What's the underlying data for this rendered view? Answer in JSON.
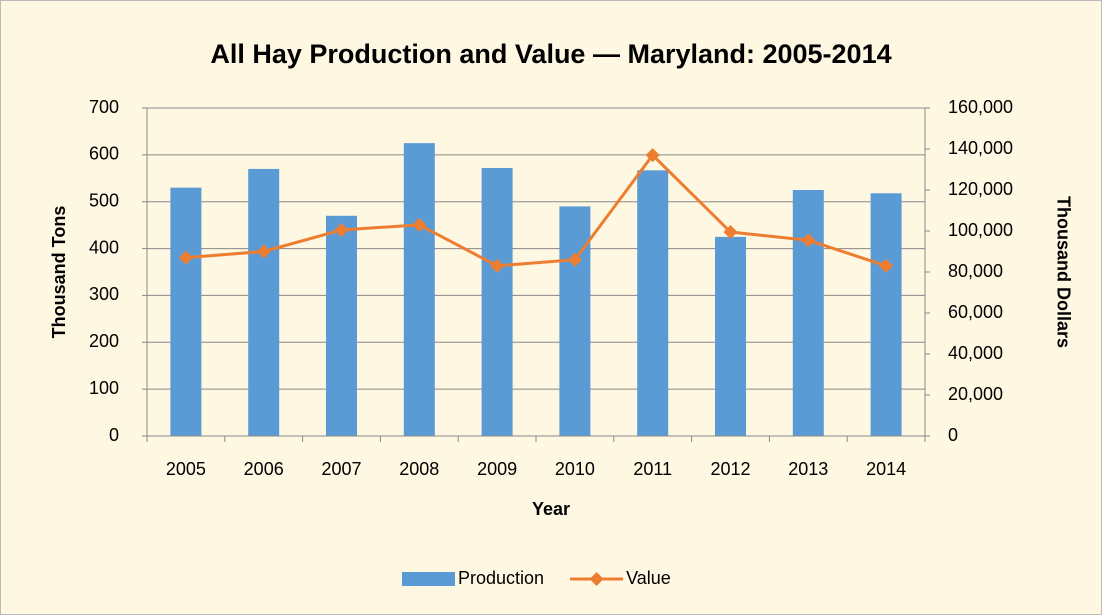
{
  "chart_data": {
    "type": "bar",
    "title": "All Hay Production and Value — Maryland: 2005-2014",
    "x_label": "Year",
    "y_label": "Thousand Tons",
    "y2_label": "Thousand Dollars",
    "categories": [
      "2005",
      "2006",
      "2007",
      "2008",
      "2009",
      "2010",
      "2011",
      "2012",
      "2013",
      "2014"
    ],
    "series": [
      {
        "name": "Production",
        "type": "bar",
        "color": "#5b9bd5",
        "values": [
          530,
          570,
          470,
          625,
          572,
          490,
          567,
          425,
          525,
          518
        ]
      },
      {
        "name": "Value",
        "type": "line",
        "axis": "y2",
        "color": "#ed7d31",
        "values": [
          87000,
          90000,
          100500,
          103000,
          83000,
          86000,
          137000,
          99500,
          95500,
          83000
        ]
      }
    ],
    "ylim": [
      0,
      700
    ],
    "yticks": [
      0,
      100,
      200,
      300,
      400,
      500,
      600,
      700
    ],
    "y2lim": [
      0,
      160000
    ],
    "y2ticks": [
      0,
      {
        "value": 20000,
        "label": "20,000"
      },
      {
        "value": 40000,
        "label": "40,000"
      },
      {
        "value": 60000,
        "label": "60,000"
      },
      {
        "value": 80000,
        "label": "80,000"
      },
      {
        "value": 100000,
        "label": "100,000"
      },
      {
        "value": 120000,
        "label": "120,000"
      },
      {
        "value": 140000,
        "label": "140,000"
      },
      {
        "value": 160000,
        "label": "160,000"
      }
    ],
    "grid": true,
    "legend": "bottom"
  }
}
